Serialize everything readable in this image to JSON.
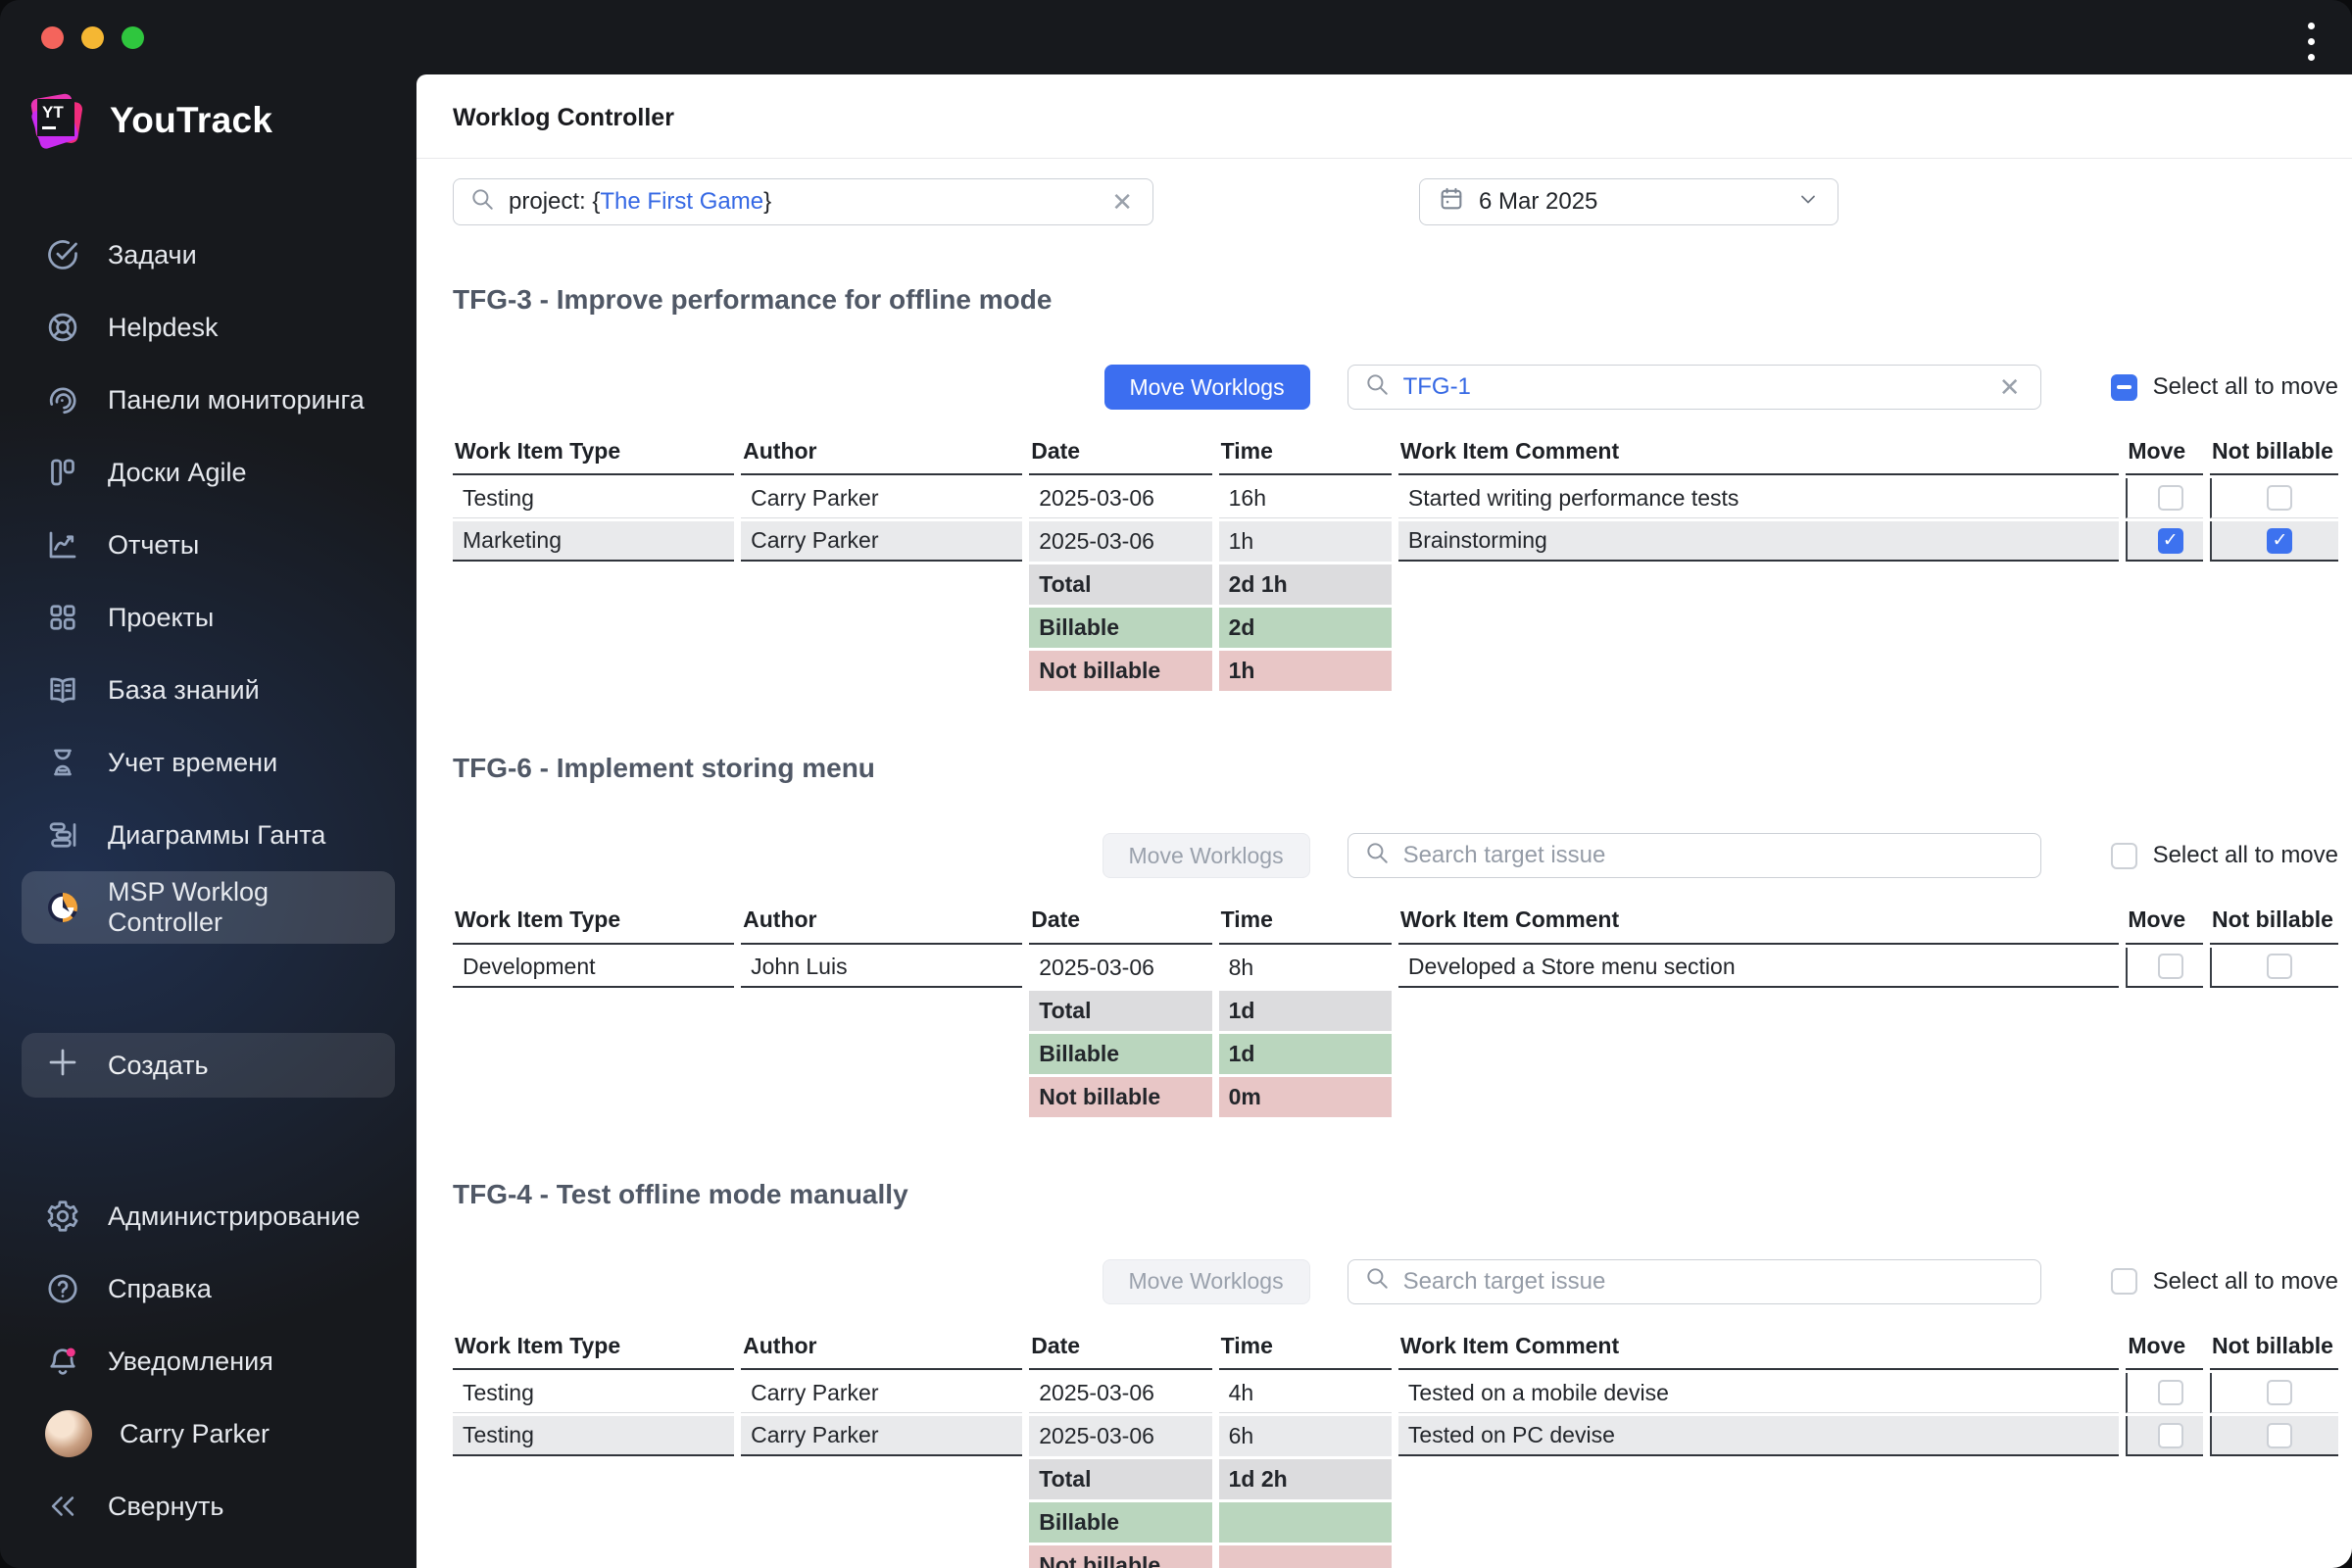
{
  "window": {
    "traffic_lights": [
      "close",
      "minimize",
      "zoom"
    ],
    "overflow_menu_icon": "kebab-menu-icon"
  },
  "brand": {
    "name": "YouTrack",
    "logo_monogram": "YT"
  },
  "sidebar": {
    "items": [
      {
        "key": "tasks",
        "label": "Задачи",
        "icon": "tasks-icon",
        "active": false
      },
      {
        "key": "helpdesk",
        "label": "Helpdesk",
        "icon": "helpdesk-icon",
        "active": false
      },
      {
        "key": "dashboards",
        "label": "Панели мониторинга",
        "icon": "dashboards-icon",
        "active": false
      },
      {
        "key": "agile-boards",
        "label": "Доски Agile",
        "icon": "agile-boards-icon",
        "active": false
      },
      {
        "key": "reports",
        "label": "Отчеты",
        "icon": "reports-icon",
        "active": false
      },
      {
        "key": "projects",
        "label": "Проекты",
        "icon": "projects-icon",
        "active": false
      },
      {
        "key": "knowledge-base",
        "label": "База знаний",
        "icon": "knowledge-base-icon",
        "active": false
      },
      {
        "key": "time-tracking",
        "label": "Учет времени",
        "icon": "time-tracking-icon",
        "active": false
      },
      {
        "key": "gantt-charts",
        "label": "Диаграммы Ганта",
        "icon": "gantt-icon",
        "active": false
      },
      {
        "key": "msp-worklog-controller",
        "label": "MSP Worklog Controller",
        "icon": "worklog-pie-icon",
        "active": true
      }
    ],
    "create_label": "Создать",
    "bottom_items": [
      {
        "key": "administration",
        "label": "Администрирование",
        "icon": "gear-icon"
      },
      {
        "key": "help",
        "label": "Справка",
        "icon": "help-icon"
      },
      {
        "key": "notifications",
        "label": "Уведомления",
        "icon": "bell-badge-icon"
      }
    ],
    "user_name": "Carry Parker",
    "collapse_label": "Свернуть"
  },
  "header": {
    "title": "Worklog Controller"
  },
  "filters": {
    "project_query_prefix": "project: {",
    "project_query_highlight": "The First Game",
    "project_query_suffix": "}",
    "date_value": "6 Mar 2025"
  },
  "labels": {
    "move_worklogs": "Move Worklogs",
    "select_all": "Select all to move",
    "search_target_placeholder": "Search target issue",
    "summary_total": "Total",
    "summary_billable": "Billable",
    "summary_not_billable": "Not billable"
  },
  "table_headers": [
    "Work Item Type",
    "Author",
    "Date",
    "Time",
    "Work Item Comment",
    "Move",
    "Not billable"
  ],
  "sections": [
    {
      "title": "TFG-3 - Improve performance for offline mode",
      "move_enabled": true,
      "search_value": "TFG-1",
      "select_all_state": "indeterminate",
      "rows": [
        {
          "type": "Testing",
          "author": "Carry Parker",
          "date": "2025-03-06",
          "time": "16h",
          "comment": "Started writing performance tests",
          "move": false,
          "not_billable": false,
          "shaded": false
        },
        {
          "type": "Marketing",
          "author": "Carry Parker",
          "date": "2025-03-06",
          "time": "1h",
          "comment": "Brainstorming",
          "move": true,
          "not_billable": true,
          "shaded": true
        }
      ],
      "summary": {
        "total": "2d 1h",
        "billable": "2d",
        "not_billable": "1h"
      }
    },
    {
      "title": "TFG-6 - Implement storing menu",
      "move_enabled": false,
      "search_value": "",
      "select_all_state": "unchecked",
      "rows": [
        {
          "type": "Development",
          "author": "John Luis",
          "date": "2025-03-06",
          "time": "8h",
          "comment": "Developed a Store menu section",
          "move": false,
          "not_billable": false,
          "shaded": false
        }
      ],
      "summary": {
        "total": "1d",
        "billable": "1d",
        "not_billable": "0m"
      }
    },
    {
      "title": "TFG-4 - Test offline mode manually",
      "move_enabled": false,
      "search_value": "",
      "select_all_state": "unchecked",
      "rows": [
        {
          "type": "Testing",
          "author": "Carry Parker",
          "date": "2025-03-06",
          "time": "4h",
          "comment": "Tested on a mobile devise",
          "move": false,
          "not_billable": false,
          "shaded": false
        },
        {
          "type": "Testing",
          "author": "Carry Parker",
          "date": "2025-03-06",
          "time": "6h",
          "comment": "Tested on PC devise",
          "move": false,
          "not_billable": false,
          "shaded": true
        }
      ],
      "summary": {
        "total": "1d 2h",
        "billable": "",
        "not_billable": ""
      }
    }
  ],
  "colors": {
    "accent_blue": "#3c6ef0",
    "checkbox_blue": "#3d72ef",
    "billable_green": "#bad6be",
    "not_billable_red": "#e8c6c6",
    "total_gray": "#dcdcde",
    "brand_pink": "#ff2e91"
  }
}
